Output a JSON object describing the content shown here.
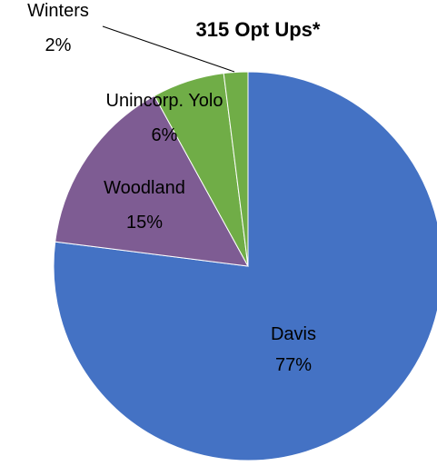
{
  "chart_data": {
    "type": "pie",
    "title": "315 Opt Ups*",
    "slices": [
      {
        "label": "Davis",
        "pct_label": "77%",
        "value": 77,
        "color": "#4472c4"
      },
      {
        "label": "Woodland",
        "pct_label": "15%",
        "value": 15,
        "color": "#7e5c93"
      },
      {
        "label": "Unincorp. Yolo",
        "pct_label": "6%",
        "value": 6,
        "color": "#70ad47"
      },
      {
        "label": "Winters",
        "pct_label": "2%",
        "value": 2,
        "color": "#70ad47"
      }
    ],
    "legend": "none",
    "start_angle": "12 o'clock",
    "direction": "clockwise"
  }
}
